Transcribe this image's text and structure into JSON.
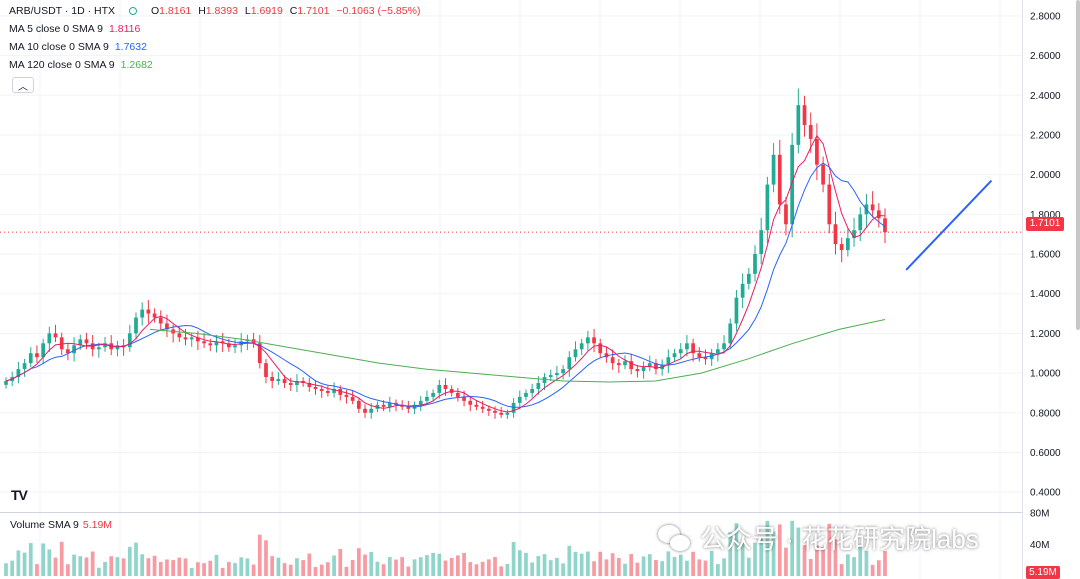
{
  "header": {
    "symbol": "ARB/USDT · 1D · HTX",
    "ohlc": {
      "o_label": "O",
      "o": "1.8161",
      "h_label": "H",
      "h": "1.8393",
      "l_label": "L",
      "l": "1.6919",
      "c_label": "C",
      "c": "1.7101",
      "change": "−0.1063 (−5.85%)"
    }
  },
  "indicators": [
    {
      "label": "MA 5 close 0 SMA 9",
      "value": "1.8116",
      "color": "#e91e63"
    },
    {
      "label": "MA 10 close 0 SMA 9",
      "value": "1.7632",
      "color": "#2962ff"
    },
    {
      "label": "MA 120 close 0 SMA 9",
      "value": "1.2682",
      "color": "#4caf50"
    }
  ],
  "collapse_icon": "chevron-up-icon",
  "volume": {
    "label": "Volume SMA 9",
    "value": "5.19M",
    "badge": "5.19M",
    "axis_labels": [
      "80M",
      "40M"
    ]
  },
  "last_price_badge": "1.7101",
  "watermark": {
    "icon": "wechat-icon",
    "text": "公众号 · 花花研究院labs"
  },
  "logo": {
    "icon": "tradingview-logo-icon",
    "text": "TV"
  },
  "colors": {
    "up": "#22ab94",
    "down": "#f23645",
    "ma5": "#e91e63",
    "ma10": "#2962ff",
    "ma120": "#4caf50",
    "trendline": "#2962ff"
  },
  "chart_data": {
    "type": "candlestick",
    "title": "ARB/USDT · 1D · HTX",
    "ylim": [
      0.3,
      2.88
    ],
    "y_ticks": [
      "2.8000",
      "2.6000",
      "2.4000",
      "2.2000",
      "2.0000",
      "1.8000",
      "1.6000",
      "1.4000",
      "1.2000",
      "1.0000",
      "0.8000",
      "0.6000",
      "0.4000"
    ],
    "last_price": 1.7101,
    "close_series": [
      0.96,
      0.98,
      1.02,
      1.05,
      1.1,
      1.08,
      1.15,
      1.2,
      1.18,
      1.12,
      1.1,
      1.14,
      1.17,
      1.15,
      1.12,
      1.13,
      1.15,
      1.12,
      1.14,
      1.13,
      1.2,
      1.28,
      1.32,
      1.3,
      1.28,
      1.25,
      1.22,
      1.2,
      1.18,
      1.17,
      1.18,
      1.16,
      1.15,
      1.14,
      1.16,
      1.15,
      1.13,
      1.14,
      1.16,
      1.17,
      1.15,
      1.05,
      0.98,
      0.96,
      0.97,
      0.95,
      0.94,
      0.96,
      0.95,
      0.93,
      0.92,
      0.91,
      0.9,
      0.92,
      0.89,
      0.88,
      0.86,
      0.82,
      0.8,
      0.82,
      0.84,
      0.83,
      0.85,
      0.84,
      0.83,
      0.82,
      0.84,
      0.86,
      0.88,
      0.9,
      0.94,
      0.92,
      0.9,
      0.88,
      0.86,
      0.84,
      0.83,
      0.82,
      0.81,
      0.8,
      0.79,
      0.8,
      0.85,
      0.88,
      0.9,
      0.92,
      0.95,
      0.98,
      0.99,
      1.0,
      1.02,
      1.08,
      1.12,
      1.15,
      1.18,
      1.15,
      1.1,
      1.08,
      1.05,
      1.04,
      1.06,
      1.02,
      1.01,
      1.03,
      1.05,
      1.02,
      1.04,
      1.08,
      1.1,
      1.12,
      1.15,
      1.1,
      1.08,
      1.07,
      1.1,
      1.12,
      1.15,
      1.25,
      1.38,
      1.45,
      1.5,
      1.6,
      1.72,
      1.95,
      2.1,
      1.85,
      1.75,
      2.15,
      2.35,
      2.25,
      2.18,
      2.05,
      1.95,
      1.75,
      1.65,
      1.62,
      1.68,
      1.72,
      1.8,
      1.85,
      1.82,
      1.78,
      1.71
    ],
    "ma120_series": [
      1.22,
      1.2,
      1.17,
      1.13,
      1.09,
      1.05,
      1.02,
      1.0,
      0.98,
      0.96,
      0.955,
      0.96,
      1.0,
      1.07,
      1.15,
      1.22,
      1.27
    ],
    "trendline": {
      "from": [
        0.839,
        1.52
      ],
      "to": [
        0.918,
        1.97
      ]
    },
    "volume_ylim": [
      0,
      80
    ],
    "volume_unit": "M"
  }
}
